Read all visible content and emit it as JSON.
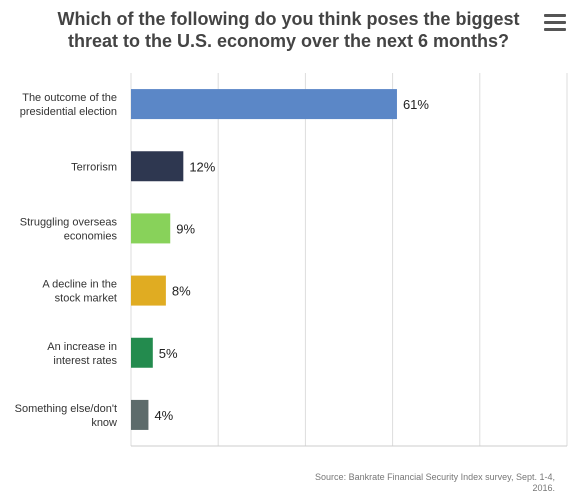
{
  "chart_data": {
    "type": "bar",
    "orientation": "horizontal",
    "title": "Which of the following do you think poses the biggest threat to the U.S. economy over the next 6 months?",
    "categories": [
      [
        "The outcome of the",
        "presidential election"
      ],
      [
        "Terrorism"
      ],
      [
        "Struggling overseas",
        "economies"
      ],
      [
        "A decline in the",
        "stock market"
      ],
      [
        "An increase in",
        "interest rates"
      ],
      [
        "Something else/don't",
        "know"
      ]
    ],
    "values": [
      61,
      12,
      9,
      8,
      5,
      4
    ],
    "value_labels": [
      "61%",
      "12%",
      "9%",
      "8%",
      "5%",
      "4%"
    ],
    "colors": [
      "#5b87c7",
      "#2e3750",
      "#88d25a",
      "#e0ac22",
      "#238b4e",
      "#5d6b6b"
    ],
    "xlim": [
      0,
      100
    ],
    "grid": true,
    "legend": "none"
  },
  "source": "Source: Bankrate Financial Security Index survey, Sept. 1-4, 2016.",
  "menu_icon": "hamburger-menu-icon"
}
